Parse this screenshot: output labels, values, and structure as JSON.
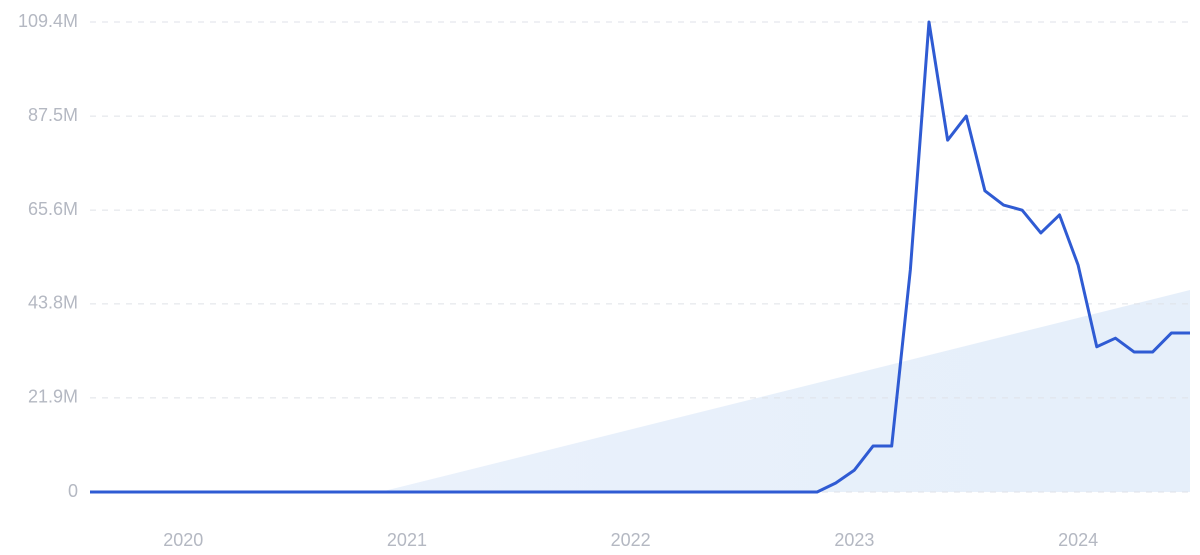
{
  "chart_data": {
    "type": "line",
    "categories": [
      null,
      null,
      null,
      null,
      null,
      "2020",
      null,
      null,
      null,
      null,
      null,
      null,
      null,
      null,
      null,
      null,
      null,
      "2021",
      null,
      null,
      null,
      null,
      null,
      null,
      null,
      null,
      null,
      null,
      null,
      "2022",
      null,
      null,
      null,
      null,
      null,
      null,
      null,
      null,
      null,
      null,
      null,
      "2023",
      null,
      null,
      null,
      null,
      null,
      null,
      null,
      null,
      null,
      null,
      null,
      "2024",
      null,
      null,
      null,
      null,
      null,
      null
    ],
    "values": [
      0,
      0,
      0,
      0,
      0,
      0,
      0,
      0,
      0,
      0,
      0,
      0,
      0,
      0,
      0,
      0,
      0,
      0,
      0,
      0,
      0,
      0,
      0,
      0,
      0,
      0,
      0,
      0,
      0,
      0,
      0,
      0,
      0,
      0,
      0,
      0,
      0,
      0,
      0,
      0,
      2.1,
      5.1,
      10.7,
      10.7,
      51.7,
      109.4,
      81.9,
      87.5,
      70.1,
      66.8,
      65.6,
      60.3,
      64.5,
      52.8,
      33.8,
      35.8,
      32.6,
      32.6,
      37.0,
      37.0
    ],
    "color": "#2f5bd3",
    "ylim": [
      0,
      109.4
    ],
    "yticks": [
      0,
      {
        "value": 21.9,
        "label": "21.9M"
      },
      {
        "value": 43.8,
        "label": "43.8M"
      },
      {
        "value": 65.6,
        "label": "65.6M"
      },
      {
        "value": 87.5,
        "label": "87.5M"
      },
      {
        "value": 109.4,
        "label": "109.4M"
      }
    ],
    "grid": true
  }
}
